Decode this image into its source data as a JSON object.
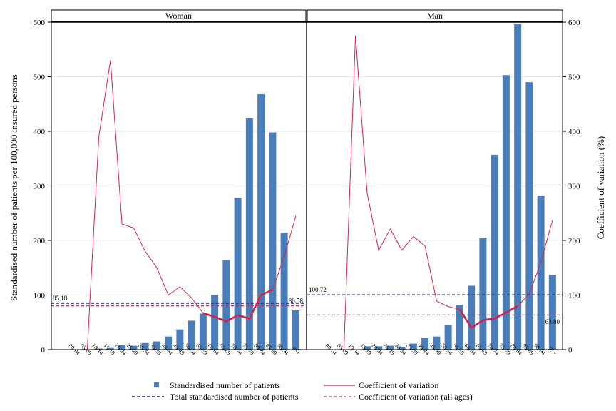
{
  "chart_data": {
    "type": "bar",
    "panels": [
      {
        "title": "Woman",
        "patients": [
          0,
          0,
          2,
          3,
          8,
          7,
          12,
          15,
          24,
          37,
          53,
          66,
          100,
          164,
          278,
          424,
          468,
          398,
          214,
          72
        ],
        "cv": [
          null,
          0,
          390,
          530,
          230,
          223,
          180,
          150,
          100,
          115,
          95,
          67,
          60,
          52,
          63,
          57,
          100,
          110,
          170,
          245
        ],
        "cv_bold_range": [
          11,
          17
        ],
        "total": 85.18,
        "cv_all": 80.58,
        "total_label": "85.18",
        "cv_all_label": "80.58"
      },
      {
        "title": "Man",
        "patients": [
          0,
          0,
          0,
          6,
          6,
          7,
          5,
          11,
          22,
          24,
          45,
          82,
          117,
          205,
          357,
          503,
          596,
          490,
          282,
          137
        ],
        "cv": [
          null,
          0,
          575,
          287,
          182,
          221,
          182,
          207,
          190,
          89,
          79,
          74,
          40,
          54,
          57,
          68,
          80,
          102,
          160,
          237
        ],
        "cv_bold_range": [
          11,
          16
        ],
        "total": 100.72,
        "cv_all": 63.8,
        "total_label": "100.72",
        "cv_all_label": "63.80"
      }
    ],
    "categories": [
      "00-04",
      "05-09",
      "10-14",
      "15-19",
      "20-24",
      "25-29",
      "30-34",
      "35-39",
      "40-44",
      "45-49",
      "50-54",
      "55-59",
      "60-64",
      "65-69",
      "70-74",
      "75-79",
      "80-84",
      "85-89",
      "90-94",
      "95+"
    ],
    "ylim": [
      0,
      600
    ],
    "yticks": [
      0,
      100,
      200,
      300,
      400,
      500,
      600
    ],
    "ylabel_left": "Standardised number of patients per 100,000 insured persons",
    "ylabel_right": "Coefficient of variation (%)",
    "legend": {
      "bar": "Standardised number of patients",
      "cv": "Coefficient of variation",
      "total": "Total standardised number of patients",
      "cv_all": "Coefficient of variation (all ages)"
    },
    "legend_position": "bottom",
    "grid": "horizontal",
    "colors": {
      "bar": "#4a7ebb",
      "cv": "#d4234a",
      "total": "#1f2a7a",
      "cv_all": "#c0306a"
    }
  }
}
